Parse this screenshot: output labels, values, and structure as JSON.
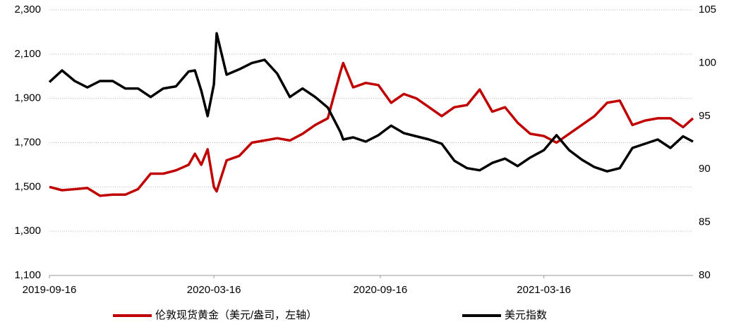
{
  "chart_data": {
    "type": "line",
    "x": [
      "2019-09-16",
      "2019-09-30",
      "2019-10-14",
      "2019-10-28",
      "2019-11-11",
      "2019-11-25",
      "2019-12-09",
      "2019-12-23",
      "2020-01-06",
      "2020-01-20",
      "2020-02-03",
      "2020-02-17",
      "2020-02-24",
      "2020-03-02",
      "2020-03-09",
      "2020-03-16",
      "2020-03-19",
      "2020-03-30",
      "2020-04-13",
      "2020-04-27",
      "2020-05-11",
      "2020-05-25",
      "2020-06-08",
      "2020-06-22",
      "2020-07-06",
      "2020-07-20",
      "2020-08-03",
      "2020-08-06",
      "2020-08-17",
      "2020-08-31",
      "2020-09-14",
      "2020-09-28",
      "2020-10-12",
      "2020-10-26",
      "2020-11-09",
      "2020-11-23",
      "2020-12-07",
      "2020-12-21",
      "2021-01-04",
      "2021-01-18",
      "2021-02-01",
      "2021-02-15",
      "2021-03-01",
      "2021-03-16",
      "2021-03-30",
      "2021-04-13",
      "2021-04-27",
      "2021-05-11",
      "2021-05-25",
      "2021-06-08",
      "2021-06-22",
      "2021-07-06",
      "2021-07-20",
      "2021-08-03",
      "2021-08-17",
      "2021-08-28"
    ],
    "series": [
      {
        "name": "伦敦现货黄金（美元/盎司，左轴）",
        "color": "#c00000",
        "axis": "y",
        "values": [
          1500,
          1485,
          1490,
          1495,
          1460,
          1465,
          1465,
          1490,
          1560,
          1560,
          1575,
          1600,
          1650,
          1600,
          1670,
          1500,
          1480,
          1620,
          1640,
          1700,
          1710,
          1720,
          1710,
          1740,
          1780,
          1810,
          2020,
          2060,
          1950,
          1970,
          1960,
          1880,
          1920,
          1900,
          1860,
          1820,
          1860,
          1870,
          1940,
          1840,
          1860,
          1790,
          1740,
          1730,
          1700,
          1740,
          1780,
          1820,
          1880,
          1890,
          1780,
          1800,
          1810,
          1810,
          1770,
          1810
        ]
      },
      {
        "name": "美元指数",
        "color": "#000000",
        "axis": "y2",
        "values": [
          98.2,
          99.3,
          98.3,
          97.7,
          98.3,
          98.3,
          97.6,
          97.6,
          96.8,
          97.6,
          97.8,
          99.2,
          99.3,
          97.4,
          95.0,
          98.0,
          102.8,
          98.9,
          99.4,
          100.0,
          100.3,
          99.0,
          96.8,
          97.6,
          96.8,
          95.8,
          93.5,
          92.8,
          93.0,
          92.6,
          93.2,
          94.1,
          93.4,
          93.1,
          92.8,
          92.4,
          90.8,
          90.1,
          89.9,
          90.6,
          91.0,
          90.3,
          91.1,
          91.8,
          93.2,
          91.8,
          90.9,
          90.2,
          89.8,
          90.1,
          92.0,
          92.4,
          92.8,
          92.0,
          93.1,
          92.6
        ]
      }
    ],
    "xlim": [
      "2019-09-16",
      "2021-08-28"
    ],
    "xticks": [
      "2019-09-16",
      "2020-03-16",
      "2020-09-16",
      "2021-03-16"
    ],
    "ylim": [
      1100,
      2300
    ],
    "yticks": [
      {
        "value": 1100,
        "label": "1,100"
      },
      {
        "value": 1300,
        "label": "1,300"
      },
      {
        "value": 1500,
        "label": "1,500"
      },
      {
        "value": 1700,
        "label": "1,700"
      },
      {
        "value": 1900,
        "label": "1,900"
      },
      {
        "value": 2100,
        "label": "2,100"
      },
      {
        "value": 2300,
        "label": "2,300"
      }
    ],
    "y2lim": [
      80,
      105
    ],
    "y2ticks": [
      80,
      85,
      90,
      95,
      100,
      105
    ],
    "grid": true,
    "legend": "bottom"
  }
}
